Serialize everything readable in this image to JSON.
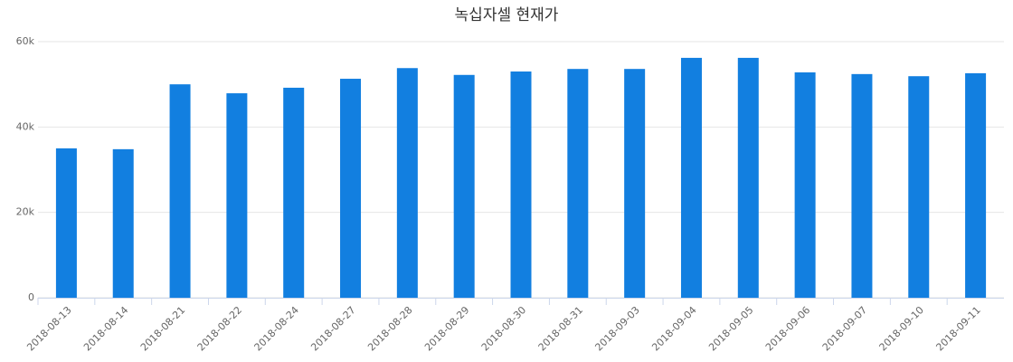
{
  "chart_data": {
    "type": "bar",
    "title": "녹십자셀 현재가",
    "categories": [
      "2018-08-13",
      "2018-08-14",
      "2018-08-21",
      "2018-08-22",
      "2018-08-24",
      "2018-08-27",
      "2018-08-28",
      "2018-08-29",
      "2018-08-30",
      "2018-08-31",
      "2018-09-03",
      "2018-09-04",
      "2018-09-05",
      "2018-09-06",
      "2018-09-07",
      "2018-09-10",
      "2018-09-11"
    ],
    "values": [
      35000,
      34800,
      50000,
      47900,
      49200,
      51300,
      53800,
      52200,
      53000,
      53600,
      53600,
      56200,
      56200,
      52800,
      52400,
      51900,
      52600
    ],
    "color": "#127fe0",
    "ylim": [
      0,
      60000
    ],
    "yticks": [
      0,
      {
        "value": 20000,
        "label": "20k"
      },
      {
        "value": 40000,
        "label": "40k"
      },
      {
        "value": 60000,
        "label": "60k"
      }
    ],
    "grid": true
  }
}
